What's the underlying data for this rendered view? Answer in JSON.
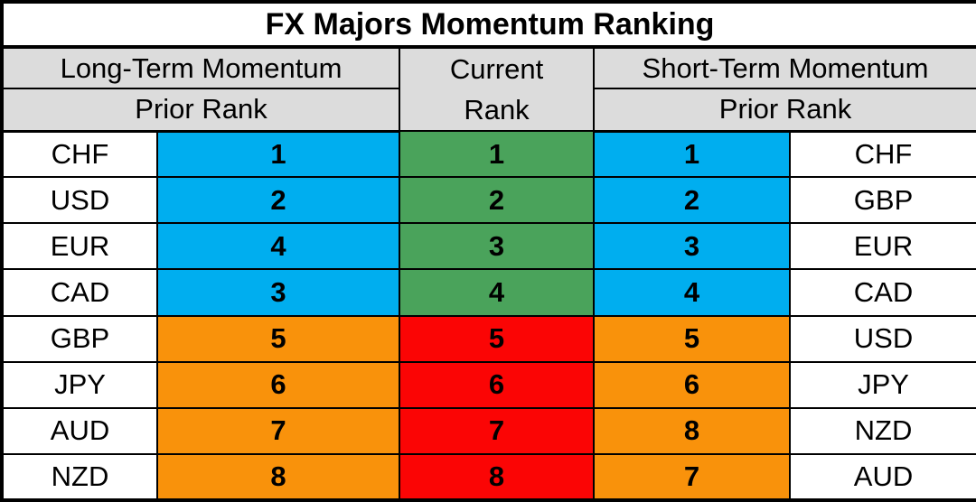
{
  "title": "FX Majors Momentum Ranking",
  "header": {
    "long_term": "Long-Term Momentum",
    "current_line1": "Current",
    "current_line2": "Rank",
    "short_term": "Short-Term Momentum",
    "prior_rank_left": "Prior Rank",
    "prior_rank_right": "Prior Rank"
  },
  "colors": {
    "blue": "#00AEEF",
    "green": "#4AA35B",
    "orange": "#F9920B",
    "red": "#FB0505",
    "header_bg": "#DCDCDC",
    "border": "#000000"
  },
  "chart_data": {
    "type": "table",
    "title": "FX Majors Momentum Ranking",
    "sections": [
      "Long-Term Momentum Prior Rank",
      "Current Rank",
      "Short-Term Momentum Prior Rank"
    ],
    "color_legend": {
      "blue": "long/short-term ranks 1-4",
      "green": "current ranks 1-4",
      "orange": "long/short-term ranks 5-8",
      "red": "current ranks 5-8"
    },
    "rows": [
      {
        "lt_currency": "CHF",
        "lt_prior_rank": "1",
        "current_rank": "1",
        "st_prior_rank": "1",
        "st_currency": "CHF",
        "lt_color": "blue",
        "current_color": "green",
        "st_color": "blue"
      },
      {
        "lt_currency": "USD",
        "lt_prior_rank": "2",
        "current_rank": "2",
        "st_prior_rank": "2",
        "st_currency": "GBP",
        "lt_color": "blue",
        "current_color": "green",
        "st_color": "blue"
      },
      {
        "lt_currency": "EUR",
        "lt_prior_rank": "4",
        "current_rank": "3",
        "st_prior_rank": "3",
        "st_currency": "EUR",
        "lt_color": "blue",
        "current_color": "green",
        "st_color": "blue"
      },
      {
        "lt_currency": "CAD",
        "lt_prior_rank": "3",
        "current_rank": "4",
        "st_prior_rank": "4",
        "st_currency": "CAD",
        "lt_color": "blue",
        "current_color": "green",
        "st_color": "blue"
      },
      {
        "lt_currency": "GBP",
        "lt_prior_rank": "5",
        "current_rank": "5",
        "st_prior_rank": "5",
        "st_currency": "USD",
        "lt_color": "orange",
        "current_color": "red",
        "st_color": "orange"
      },
      {
        "lt_currency": "JPY",
        "lt_prior_rank": "6",
        "current_rank": "6",
        "st_prior_rank": "6",
        "st_currency": "JPY",
        "lt_color": "orange",
        "current_color": "red",
        "st_color": "orange"
      },
      {
        "lt_currency": "AUD",
        "lt_prior_rank": "7",
        "current_rank": "7",
        "st_prior_rank": "8",
        "st_currency": "NZD",
        "lt_color": "orange",
        "current_color": "red",
        "st_color": "orange"
      },
      {
        "lt_currency": "NZD",
        "lt_prior_rank": "8",
        "current_rank": "8",
        "st_prior_rank": "7",
        "st_currency": "AUD",
        "lt_color": "orange",
        "current_color": "red",
        "st_color": "orange"
      }
    ]
  }
}
